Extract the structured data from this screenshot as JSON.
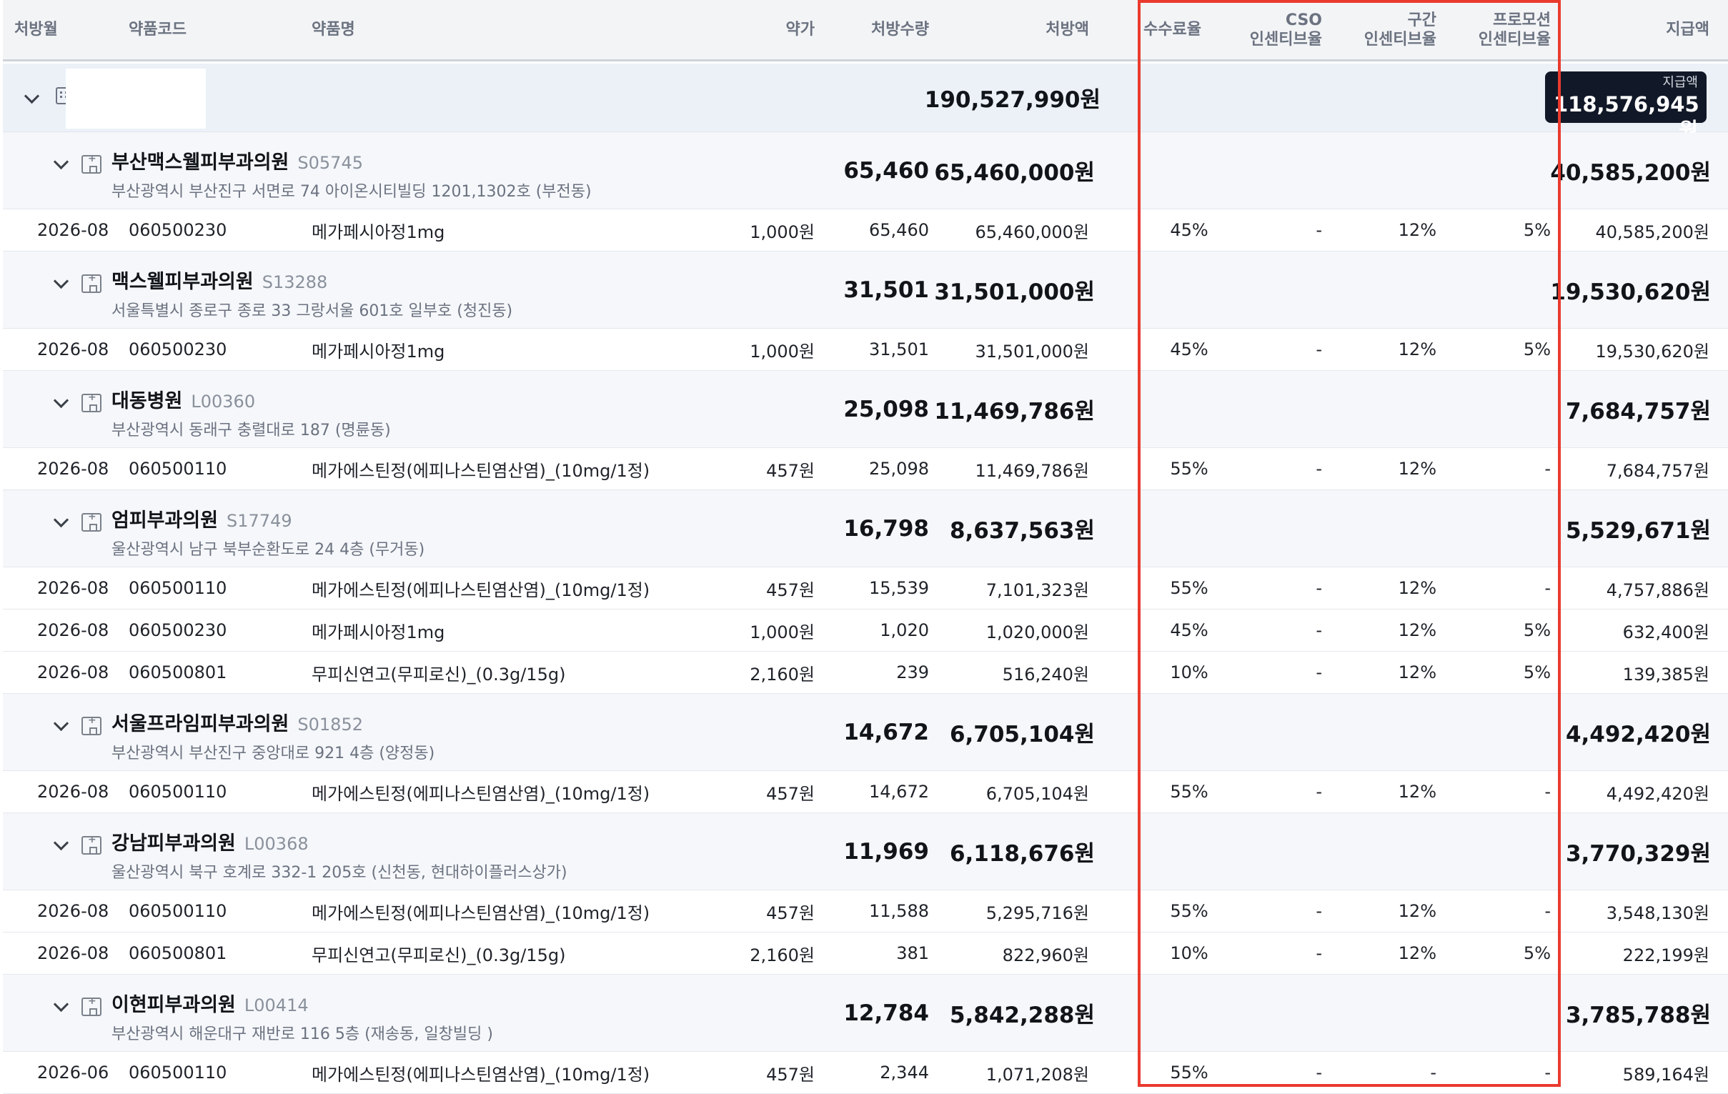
{
  "header": {
    "month": "처방월",
    "code": "약품코드",
    "name": "약품명",
    "price": "약가",
    "qty": "처방수량",
    "amount": "처방액",
    "fee_rate": "수수료율",
    "cso_1": "CSO",
    "cso_2": "인센티브율",
    "section_1": "구간",
    "section_2": "인센티브율",
    "promo_1": "프로모션",
    "promo_2": "인센티브율",
    "payment": "지급액"
  },
  "total": {
    "amount": "190,527,990원",
    "payment_label": "지급액",
    "payment": "118,576,945원"
  },
  "clinics": [
    {
      "name": "부산맥스웰피부과의원",
      "code": "S05745",
      "address": "부산광역시 부산진구 서면로 74 아이온시티빌딩 1201,1302호 (부전동)",
      "qty": "65,460",
      "amount": "65,460,000원",
      "payment": "40,585,200원",
      "drugs": [
        {
          "month": "2026-08",
          "code": "060500230",
          "name": "메가페시아정1mg",
          "price": "1,000원",
          "qty": "65,460",
          "amount": "65,460,000원",
          "fee": "45%",
          "cso": "-",
          "section": "12%",
          "promo": "5%",
          "payment": "40,585,200원"
        }
      ]
    },
    {
      "name": "맥스웰피부과의원",
      "code": "S13288",
      "address": "서울특별시 종로구 종로 33 그랑서울 601호 일부호 (청진동)",
      "qty": "31,501",
      "amount": "31,501,000원",
      "payment": "19,530,620원",
      "drugs": [
        {
          "month": "2026-08",
          "code": "060500230",
          "name": "메가페시아정1mg",
          "price": "1,000원",
          "qty": "31,501",
          "amount": "31,501,000원",
          "fee": "45%",
          "cso": "-",
          "section": "12%",
          "promo": "5%",
          "payment": "19,530,620원"
        }
      ]
    },
    {
      "name": "대동병원",
      "code": "L00360",
      "address": "부산광역시 동래구 충렬대로 187 (명륜동)",
      "qty": "25,098",
      "amount": "11,469,786원",
      "payment": "7,684,757원",
      "drugs": [
        {
          "month": "2026-08",
          "code": "060500110",
          "name": "메가에스틴정(에피나스틴염산염)_(10mg/1정)",
          "price": "457원",
          "qty": "25,098",
          "amount": "11,469,786원",
          "fee": "55%",
          "cso": "-",
          "section": "12%",
          "promo": "-",
          "payment": "7,684,757원"
        }
      ]
    },
    {
      "name": "엄피부과의원",
      "code": "S17749",
      "address": "울산광역시 남구 북부순환도로 24 4층 (무거동)",
      "qty": "16,798",
      "amount": "8,637,563원",
      "payment": "5,529,671원",
      "drugs": [
        {
          "month": "2026-08",
          "code": "060500110",
          "name": "메가에스틴정(에피나스틴염산염)_(10mg/1정)",
          "price": "457원",
          "qty": "15,539",
          "amount": "7,101,323원",
          "fee": "55%",
          "cso": "-",
          "section": "12%",
          "promo": "-",
          "payment": "4,757,886원"
        },
        {
          "month": "2026-08",
          "code": "060500230",
          "name": "메가페시아정1mg",
          "price": "1,000원",
          "qty": "1,020",
          "amount": "1,020,000원",
          "fee": "45%",
          "cso": "-",
          "section": "12%",
          "promo": "5%",
          "payment": "632,400원"
        },
        {
          "month": "2026-08",
          "code": "060500801",
          "name": "무피신연고(무피로신)_(0.3g/15g)",
          "price": "2,160원",
          "qty": "239",
          "amount": "516,240원",
          "fee": "10%",
          "cso": "-",
          "section": "12%",
          "promo": "5%",
          "payment": "139,385원"
        }
      ]
    },
    {
      "name": "서울프라임피부과의원",
      "code": "S01852",
      "address": "부산광역시 부산진구 중앙대로 921 4층 (양정동)",
      "qty": "14,672",
      "amount": "6,705,104원",
      "payment": "4,492,420원",
      "drugs": [
        {
          "month": "2026-08",
          "code": "060500110",
          "name": "메가에스틴정(에피나스틴염산염)_(10mg/1정)",
          "price": "457원",
          "qty": "14,672",
          "amount": "6,705,104원",
          "fee": "55%",
          "cso": "-",
          "section": "12%",
          "promo": "-",
          "payment": "4,492,420원"
        }
      ]
    },
    {
      "name": "강남피부과의원",
      "code": "L00368",
      "address": "울산광역시 북구 호계로 332-1 205호 (신천동, 현대하이플러스상가)",
      "qty": "11,969",
      "amount": "6,118,676원",
      "payment": "3,770,329원",
      "drugs": [
        {
          "month": "2026-08",
          "code": "060500110",
          "name": "메가에스틴정(에피나스틴염산염)_(10mg/1정)",
          "price": "457원",
          "qty": "11,588",
          "amount": "5,295,716원",
          "fee": "55%",
          "cso": "-",
          "section": "12%",
          "promo": "-",
          "payment": "3,548,130원"
        },
        {
          "month": "2026-08",
          "code": "060500801",
          "name": "무피신연고(무피로신)_(0.3g/15g)",
          "price": "2,160원",
          "qty": "381",
          "amount": "822,960원",
          "fee": "10%",
          "cso": "-",
          "section": "12%",
          "promo": "5%",
          "payment": "222,199원"
        }
      ]
    },
    {
      "name": "이현피부과의원",
      "code": "L00414",
      "address": "부산광역시 해운대구 재반로 116 5층 (재송동, 일창빌딩 )",
      "qty": "12,784",
      "amount": "5,842,288원",
      "payment": "3,785,788원",
      "drugs": [
        {
          "month": "2026-06",
          "code": "060500110",
          "name": "메가에스틴정(에피나스틴염산염)_(10mg/1정)",
          "price": "457원",
          "qty": "2,344",
          "amount": "1,071,208원",
          "fee": "55%",
          "cso": "-",
          "section": "-",
          "promo": "-",
          "payment": "589,164원"
        }
      ]
    }
  ]
}
